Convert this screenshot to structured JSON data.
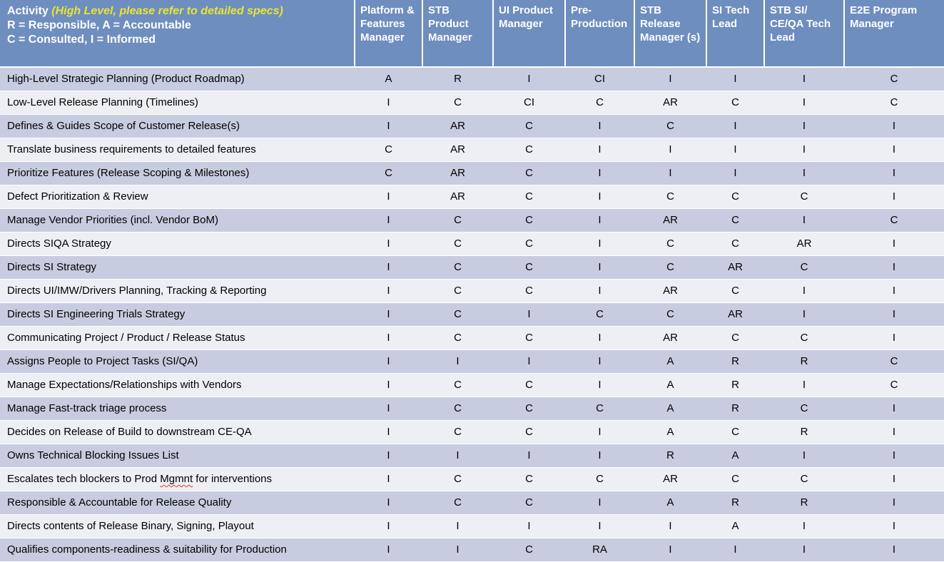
{
  "colors": {
    "header_blue": "#6e8ebf",
    "note_yellow": "#e8e532",
    "row_dark": "#c8cce0",
    "row_light": "#edeff5",
    "spellcheck_red": "#e03c1b"
  },
  "header": {
    "activity_title": "Activity",
    "activity_note": "(High Level, please refer to detailed specs)",
    "legend_line1": "R = Responsible, A = Accountable",
    "legend_line2": "C = Consulted, I = Informed",
    "columns": [
      "Platform & Features Manager",
      "STB Product Manager",
      "UI Product Manager",
      "Pre-Production",
      "STB Release Manager (s)",
      "SI Tech Lead",
      "STB SI/ CE/QA Tech Lead",
      "E2E Program Manager"
    ]
  },
  "rows": [
    {
      "activity": "High-Level Strategic Planning (Product Roadmap)",
      "values": [
        "A",
        "R",
        "I",
        "CI",
        "I",
        "I",
        "I",
        "C"
      ]
    },
    {
      "activity": "Low-Level Release Planning (Timelines)",
      "values": [
        "I",
        "C",
        "CI",
        "C",
        "AR",
        "C",
        "I",
        "C"
      ]
    },
    {
      "activity": "Defines & Guides Scope of Customer Release(s)",
      "values": [
        "I",
        "AR",
        "C",
        "I",
        "C",
        "I",
        "I",
        "I"
      ]
    },
    {
      "activity": "Translate business requirements to detailed features",
      "values": [
        "C",
        "AR",
        "C",
        "I",
        "I",
        "I",
        "I",
        "I"
      ]
    },
    {
      "activity": "Prioritize Features (Release Scoping & Milestones)",
      "values": [
        "C",
        "AR",
        "C",
        "I",
        "I",
        "I",
        "I",
        "I"
      ]
    },
    {
      "activity": "Defect Prioritization & Review",
      "values": [
        "I",
        "AR",
        "C",
        "I",
        "C",
        "C",
        "C",
        "I"
      ]
    },
    {
      "activity": "Manage Vendor Priorities (incl. Vendor BoM)",
      "values": [
        "I",
        "C",
        "C",
        "I",
        "AR",
        "C",
        "I",
        "C"
      ]
    },
    {
      "activity": "Directs SIQA Strategy",
      "values": [
        "I",
        "C",
        "C",
        "I",
        "C",
        "C",
        "AR",
        "I"
      ]
    },
    {
      "activity": "Directs SI Strategy",
      "values": [
        "I",
        "C",
        "C",
        "I",
        "C",
        "AR",
        "C",
        "I"
      ]
    },
    {
      "activity": "Directs UI/IMW/Drivers Planning, Tracking & Reporting",
      "values": [
        "I",
        "C",
        "C",
        "I",
        "AR",
        "C",
        "I",
        "I"
      ]
    },
    {
      "activity": "Directs SI Engineering Trials Strategy",
      "values": [
        "I",
        "C",
        "I",
        "C",
        "C",
        "AR",
        "I",
        "I"
      ]
    },
    {
      "activity": "Communicating Project / Product / Release Status",
      "values": [
        "I",
        "C",
        "C",
        "I",
        "AR",
        "C",
        "C",
        "I"
      ]
    },
    {
      "activity": "Assigns People to Project Tasks (SI/QA)",
      "values": [
        "I",
        "I",
        "I",
        "I",
        "A",
        "R",
        "R",
        "C"
      ]
    },
    {
      "activity": "Manage Expectations/Relationships with Vendors",
      "values": [
        "I",
        "C",
        "C",
        "I",
        "A",
        "R",
        "I",
        "C"
      ]
    },
    {
      "activity": "Manage Fast-track triage process",
      "values": [
        "I",
        "C",
        "C",
        "C",
        "A",
        "R",
        "C",
        "I"
      ]
    },
    {
      "activity": "Decides on Release of Build to downstream CE-QA",
      "values": [
        "I",
        "C",
        "C",
        "I",
        "A",
        "C",
        "R",
        "I"
      ]
    },
    {
      "activity": "Owns Technical Blocking Issues List",
      "values": [
        "I",
        "I",
        "I",
        "I",
        "R",
        "A",
        "I",
        "I"
      ]
    },
    {
      "activity": "Escalates tech blockers to Prod Mgmnt for interventions",
      "spellcheck_word": "Mgmnt",
      "values": [
        "I",
        "C",
        "C",
        "C",
        "AR",
        "C",
        "C",
        "I"
      ]
    },
    {
      "activity": "Responsible & Accountable for Release Quality",
      "values": [
        "I",
        "C",
        "C",
        "I",
        "A",
        "R",
        "R",
        "I"
      ]
    },
    {
      "activity": "Directs contents of Release Binary, Signing, Playout",
      "values": [
        "I",
        "I",
        "I",
        "I",
        "I",
        "A",
        "I",
        "I"
      ]
    },
    {
      "activity": "Qualifies components-readiness & suitability for Production",
      "values": [
        "I",
        "I",
        "C",
        "RA",
        "I",
        "I",
        "I",
        "I"
      ]
    }
  ]
}
